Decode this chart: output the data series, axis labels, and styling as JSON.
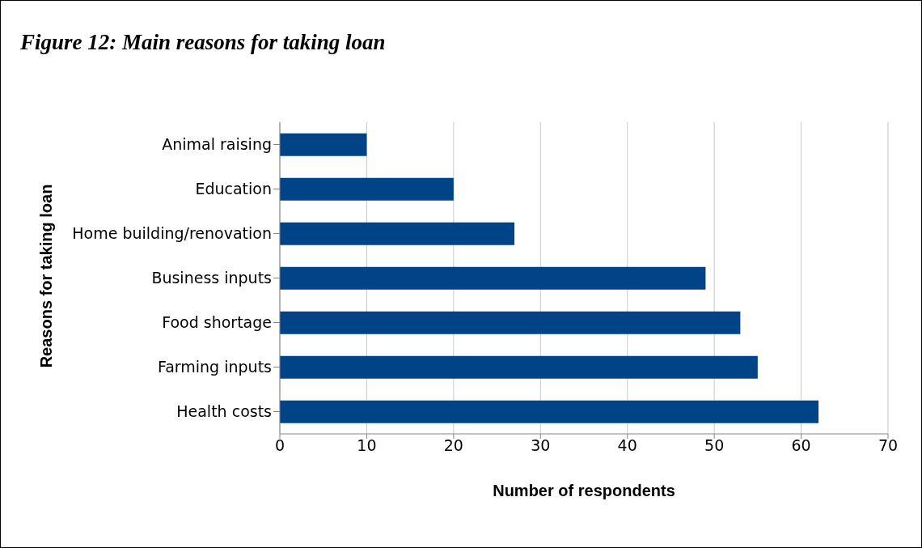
{
  "chart_data": {
    "type": "bar",
    "orientation": "horizontal",
    "title": "Figure 12: Main reasons for taking loan",
    "xlabel": "Number of respondents",
    "ylabel": "Reasons for taking loan",
    "categories": [
      "Animal raising",
      "Education",
      "Home building/renovation",
      "Business inputs",
      "Food shortage",
      "Farming inputs",
      "Health costs"
    ],
    "values": [
      10,
      20,
      27,
      49,
      53,
      55,
      62
    ],
    "color": "#004386",
    "xlim": [
      0,
      70
    ],
    "xticks": [
      0,
      10,
      20,
      30,
      40,
      50,
      60,
      70
    ],
    "grid": "x"
  }
}
